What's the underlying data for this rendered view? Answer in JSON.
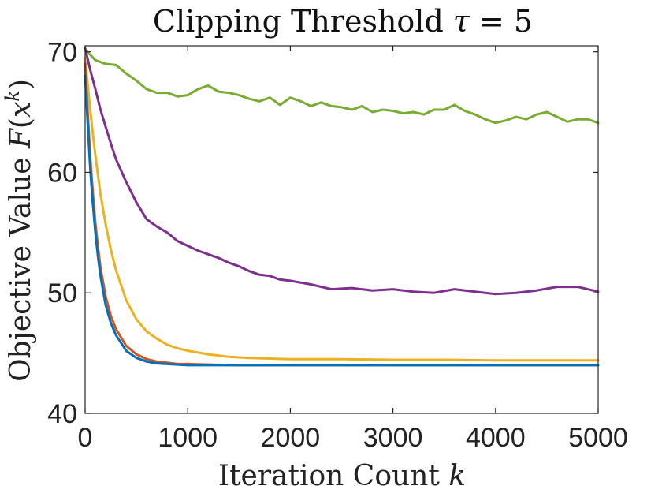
{
  "chart_data": {
    "type": "line",
    "title": "Clipping Threshold τ = 5",
    "title_prefix": "Clipping Threshold ",
    "title_symbol": "τ",
    "title_suffix": " = 5",
    "xlabel": "Iteration Count k",
    "xlabel_prefix": "Iteration Count ",
    "xlabel_symbol": "k",
    "ylabel": "Objective Value F(x^k)",
    "ylabel_prefix": "Objective Value ",
    "ylabel_fn": "F",
    "ylabel_var": "x",
    "ylabel_sup": "k",
    "xlim": [
      0,
      5000
    ],
    "ylim": [
      40,
      70.5
    ],
    "xticks": [
      0,
      1000,
      2000,
      3000,
      4000,
      5000
    ],
    "xtick_labels": [
      "0",
      "1000",
      "2000",
      "3000",
      "4000",
      "5000"
    ],
    "yticks": [
      40,
      50,
      60,
      70
    ],
    "ytick_labels": [
      "40",
      "50",
      "60",
      "70"
    ],
    "grid": false,
    "legend": "none",
    "series": [
      {
        "name": "green",
        "color": "#77AC30",
        "x": [
          0,
          100,
          200,
          300,
          400,
          500,
          600,
          700,
          800,
          900,
          1000,
          1100,
          1200,
          1300,
          1400,
          1500,
          1600,
          1700,
          1800,
          1900,
          2000,
          2100,
          2200,
          2300,
          2400,
          2500,
          2600,
          2700,
          2800,
          2900,
          3000,
          3100,
          3200,
          3300,
          3400,
          3500,
          3600,
          3700,
          3800,
          3900,
          4000,
          4100,
          4200,
          4300,
          4400,
          4500,
          4600,
          4700,
          4800,
          4900,
          5000
        ],
        "values": [
          70.2,
          69.3,
          69.0,
          68.9,
          68.2,
          67.6,
          66.9,
          66.6,
          66.6,
          66.3,
          66.4,
          66.9,
          67.2,
          66.7,
          66.6,
          66.4,
          66.1,
          65.9,
          66.2,
          65.6,
          66.2,
          65.9,
          65.5,
          65.8,
          65.5,
          65.4,
          65.2,
          65.5,
          65.0,
          65.2,
          65.1,
          64.9,
          65.0,
          64.8,
          65.2,
          65.2,
          65.6,
          65.1,
          64.8,
          64.4,
          64.1,
          64.3,
          64.6,
          64.4,
          64.8,
          65.0,
          64.6,
          64.2,
          64.4,
          64.4,
          64.1
        ]
      },
      {
        "name": "purple",
        "color": "#7E2F8E",
        "x": [
          0,
          50,
          100,
          150,
          200,
          250,
          300,
          400,
          500,
          600,
          700,
          800,
          900,
          1000,
          1100,
          1200,
          1300,
          1400,
          1500,
          1600,
          1700,
          1800,
          1900,
          2000,
          2200,
          2400,
          2600,
          2800,
          3000,
          3200,
          3400,
          3600,
          3800,
          4000,
          4200,
          4400,
          4600,
          4800,
          5000
        ],
        "values": [
          70.3,
          68.5,
          66.9,
          65.2,
          63.8,
          62.4,
          61.1,
          59.2,
          57.5,
          56.1,
          55.5,
          55.0,
          54.3,
          53.9,
          53.5,
          53.2,
          52.9,
          52.5,
          52.2,
          51.8,
          51.5,
          51.4,
          51.1,
          51.0,
          50.7,
          50.3,
          50.4,
          50.2,
          50.3,
          50.1,
          50.0,
          50.3,
          50.1,
          49.9,
          50.0,
          50.2,
          50.5,
          50.5,
          50.1
        ]
      },
      {
        "name": "yellow",
        "color": "#EDB120",
        "x": [
          0,
          25,
          50,
          75,
          100,
          150,
          200,
          250,
          300,
          400,
          500,
          600,
          700,
          800,
          900,
          1000,
          1200,
          1400,
          1600,
          1800,
          2000,
          2500,
          3000,
          3500,
          4000,
          4500,
          5000
        ],
        "values": [
          69.5,
          67.3,
          65.2,
          63.2,
          61.4,
          58.2,
          55.7,
          53.6,
          51.9,
          49.4,
          47.8,
          46.8,
          46.2,
          45.7,
          45.4,
          45.2,
          44.9,
          44.7,
          44.6,
          44.55,
          44.5,
          44.5,
          44.45,
          44.45,
          44.4,
          44.4,
          44.4
        ]
      },
      {
        "name": "red",
        "color": "#D95319",
        "x": [
          0,
          25,
          50,
          75,
          100,
          125,
          150,
          200,
          250,
          300,
          400,
          500,
          600,
          700,
          800,
          900,
          1000,
          1200,
          1500,
          2000,
          2500,
          3000,
          3500,
          4000,
          4500,
          5000
        ],
        "values": [
          69.0,
          65.0,
          61.3,
          58.3,
          55.8,
          53.8,
          52.1,
          49.7,
          48.1,
          47.0,
          45.6,
          44.9,
          44.5,
          44.3,
          44.2,
          44.1,
          44.1,
          44.05,
          44.0,
          44.0,
          44.0,
          44.0,
          44.0,
          44.0,
          44.0,
          44.0
        ]
      },
      {
        "name": "blue",
        "color": "#0072BD",
        "x": [
          0,
          25,
          50,
          75,
          100,
          125,
          150,
          200,
          250,
          300,
          400,
          500,
          600,
          700,
          800,
          900,
          1000,
          1200,
          1500,
          2000,
          2500,
          3000,
          3500,
          4000,
          4500,
          5000
        ],
        "values": [
          68.0,
          64.0,
          60.3,
          57.4,
          55.0,
          53.0,
          51.4,
          49.0,
          47.5,
          46.5,
          45.2,
          44.6,
          44.3,
          44.15,
          44.1,
          44.05,
          44.0,
          44.0,
          44.0,
          44.0,
          44.0,
          44.0,
          44.0,
          44.0,
          44.0,
          44.0
        ]
      }
    ]
  }
}
